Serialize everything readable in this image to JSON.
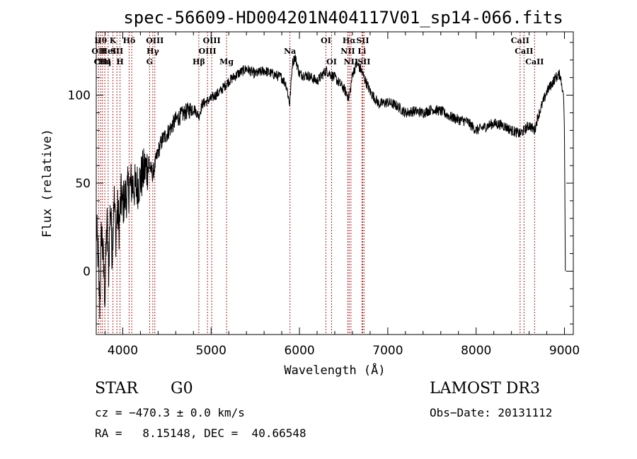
{
  "chart_data": {
    "type": "line",
    "title": "spec-56609-HD004201N404117V01_sp14-066.fits",
    "xlabel": "Wavelength (Å)",
    "ylabel": "Flux (relative)",
    "xlim": [
      3700,
      9100
    ],
    "ylim": [
      -36,
      136
    ],
    "xticks": [
      4000,
      5000,
      6000,
      7000,
      8000,
      9000
    ],
    "yticks": [
      0,
      50,
      100
    ],
    "series": [
      {
        "name": "flux",
        "color": "#000000",
        "x": [
          3700,
          3720,
          3740,
          3760,
          3780,
          3800,
          3820,
          3840,
          3860,
          3880,
          3900,
          3920,
          3940,
          3960,
          3980,
          4000,
          4050,
          4100,
          4150,
          4200,
          4250,
          4300,
          4340,
          4400,
          4450,
          4500,
          4600,
          4700,
          4800,
          4861,
          4900,
          5000,
          5100,
          5200,
          5300,
          5400,
          5500,
          5600,
          5700,
          5800,
          5850,
          5890,
          5920,
          5950,
          6000,
          6100,
          6200,
          6300,
          6400,
          6500,
          6563,
          6600,
          6650,
          6700,
          6750,
          6800,
          6900,
          7000,
          7100,
          7200,
          7300,
          7400,
          7500,
          7600,
          7700,
          7800,
          7900,
          8000,
          8100,
          8200,
          8300,
          8400,
          8498,
          8542,
          8600,
          8662,
          8700,
          8800,
          8900,
          8950,
          8990,
          9000,
          9010
        ],
        "y": [
          25,
          10,
          -20,
          25,
          5,
          -15,
          30,
          0,
          40,
          10,
          45,
          20,
          35,
          25,
          42,
          38,
          45,
          50,
          47,
          52,
          58,
          60,
          55,
          68,
          75,
          78,
          86,
          90,
          93,
          88,
          95,
          98,
          102,
          108,
          112,
          115,
          112,
          114,
          112,
          110,
          106,
          95,
          118,
          122,
          112,
          111,
          108,
          114,
          110,
          104,
          98,
          112,
          118,
          114,
          108,
          102,
          95,
          96,
          94,
          90,
          91,
          90,
          92,
          91,
          88,
          86,
          85,
          80,
          82,
          84,
          83,
          80,
          78,
          80,
          83,
          80,
          88,
          102,
          110,
          112,
          100,
          80,
          0
        ]
      }
    ],
    "lines": [
      {
        "wave": 3727,
        "label": "OII",
        "row": 2
      },
      {
        "wave": 3750,
        "label": "Hθ",
        "row": 1
      },
      {
        "wave": 3770,
        "label": "CIII",
        "row": 3
      },
      {
        "wave": 3797,
        "label": "Hη",
        "row": 3
      },
      {
        "wave": 3835,
        "label": "HeI",
        "row": 2
      },
      {
        "wave": 3889,
        "label": "K",
        "row": 1
      },
      {
        "wave": 3934,
        "label": "SII",
        "row": 2
      },
      {
        "wave": 3969,
        "label": "H",
        "row": 3
      },
      {
        "wave": 4072,
        "label": "Hδ",
        "row": 1
      },
      {
        "wave": 4102,
        "label": "",
        "row": 0
      },
      {
        "wave": 4304,
        "label": "G",
        "row": 3
      },
      {
        "wave": 4340,
        "label": "Hγ",
        "row": 2
      },
      {
        "wave": 4363,
        "label": "OIII",
        "row": 1
      },
      {
        "wave": 4861,
        "label": "Hβ",
        "row": 3
      },
      {
        "wave": 4959,
        "label": "OIII",
        "row": 2
      },
      {
        "wave": 5007,
        "label": "OIII",
        "row": 1
      },
      {
        "wave": 5175,
        "label": "Mg",
        "row": 3
      },
      {
        "wave": 5893,
        "label": "Na",
        "row": 2
      },
      {
        "wave": 6300,
        "label": "OI",
        "row": 1
      },
      {
        "wave": 6364,
        "label": "OI",
        "row": 3
      },
      {
        "wave": 6548,
        "label": "NII",
        "row": 2
      },
      {
        "wave": 6563,
        "label": "Hα",
        "row": 1
      },
      {
        "wave": 6583,
        "label": "NII",
        "row": 3
      },
      {
        "wave": 6707,
        "label": "Li",
        "row": 2
      },
      {
        "wave": 6716,
        "label": "SII",
        "row": 1
      },
      {
        "wave": 6731,
        "label": "SII",
        "row": 3
      },
      {
        "wave": 8498,
        "label": "CaII",
        "row": 1
      },
      {
        "wave": 8542,
        "label": "CaII",
        "row": 2
      },
      {
        "wave": 8662,
        "label": "CaII",
        "row": 3
      }
    ],
    "line_color": "#b22222"
  },
  "info": {
    "class_label": "STAR",
    "subclass": "G0",
    "survey": "LAMOST DR3",
    "cz": "cz = −470.3 ± 0.0 km/s",
    "obs_date": "Obs−Date: 20131112",
    "coords": "RA =   8.15148, DEC =  40.66548"
  }
}
